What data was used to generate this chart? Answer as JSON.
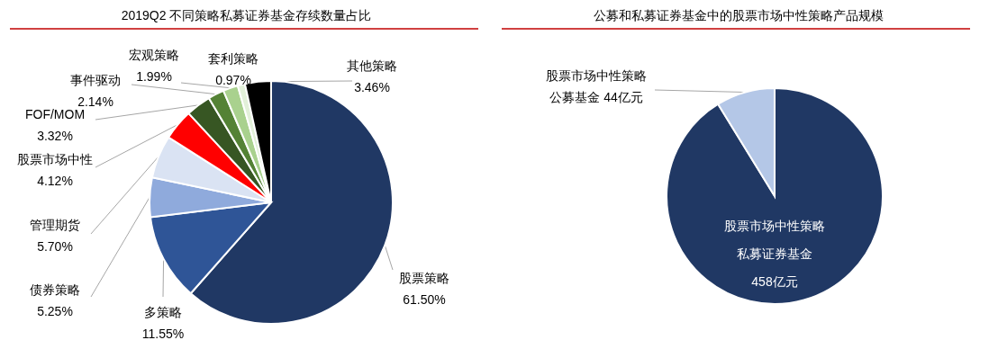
{
  "chart_data": [
    {
      "type": "pie",
      "title": "2019Q2 不同策略私募证券基金存续数量占比",
      "categories": [
        "股票策略",
        "多策略",
        "债券策略",
        "管理期货",
        "股票市场中性",
        "FOF/MOM",
        "事件驱动",
        "宏观策略",
        "套利策略",
        "其他策略"
      ],
      "values": [
        61.5,
        11.55,
        5.25,
        5.7,
        4.12,
        3.32,
        2.14,
        1.99,
        0.97,
        3.46
      ],
      "value_labels": [
        "61.50%",
        "11.55%",
        "5.25%",
        "5.70%",
        "4.12%",
        "3.32%",
        "2.14%",
        "1.99%",
        "0.97%",
        "3.46%"
      ],
      "colors": [
        "#203864",
        "#2f5597",
        "#8faadc",
        "#dae3f3",
        "#ff0000",
        "#375623",
        "#548235",
        "#a9d18e",
        "#e2f0d9",
        "#000000"
      ]
    },
    {
      "type": "pie",
      "title": "公募和私募证券基金中的股票市场中性策略产品规模",
      "categories": [
        "股票市场中性策略私募证券基金",
        "股票市场中性策略公募基金"
      ],
      "values": [
        458,
        44
      ],
      "value_labels": [
        "458亿元",
        "44亿元"
      ],
      "colors": [
        "#203864",
        "#b4c7e7"
      ]
    }
  ]
}
